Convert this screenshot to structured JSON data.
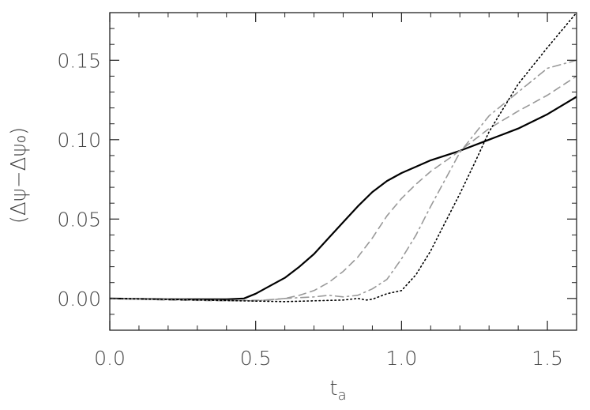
{
  "chart_data": {
    "type": "line",
    "title": "",
    "xlabel_main": "t",
    "xlabel_sub": "a",
    "ylabel": "(Δψ−Δψ₀)",
    "xlim": [
      0.0,
      1.6
    ],
    "ylim": [
      -0.02,
      0.18
    ],
    "x_ticks": [
      0.0,
      0.5,
      1.0,
      1.5
    ],
    "x_tick_labels": [
      "0.0",
      "0.5",
      "1.0",
      "1.5"
    ],
    "y_ticks": [
      0.0,
      0.05,
      0.1,
      0.15
    ],
    "y_tick_labels": [
      "0.00",
      "0.05",
      "0.10",
      "0.15"
    ],
    "grid": false,
    "legend": "none",
    "series": [
      {
        "style": "solid",
        "color": "#000000",
        "x": [
          0.0,
          0.2,
          0.4,
          0.46,
          0.5,
          0.55,
          0.6,
          0.65,
          0.7,
          0.75,
          0.8,
          0.85,
          0.9,
          0.95,
          1.0,
          1.05,
          1.1,
          1.2,
          1.3,
          1.4,
          1.5,
          1.6
        ],
        "y": [
          0.0,
          -0.0005,
          -0.0005,
          0.0,
          0.003,
          0.008,
          0.013,
          0.02,
          0.028,
          0.038,
          0.048,
          0.058,
          0.067,
          0.074,
          0.079,
          0.083,
          0.087,
          0.093,
          0.1,
          0.107,
          0.116,
          0.127
        ]
      },
      {
        "style": "dashed",
        "color": "#999999",
        "x": [
          0.0,
          0.2,
          0.4,
          0.55,
          0.6,
          0.65,
          0.7,
          0.75,
          0.8,
          0.85,
          0.9,
          0.95,
          1.0,
          1.05,
          1.1,
          1.2,
          1.3,
          1.4,
          1.5,
          1.6
        ],
        "y": [
          0.0,
          -0.001,
          -0.0015,
          -0.001,
          0.0,
          0.002,
          0.005,
          0.01,
          0.017,
          0.026,
          0.038,
          0.052,
          0.063,
          0.072,
          0.08,
          0.093,
          0.107,
          0.118,
          0.128,
          0.14
        ]
      },
      {
        "style": "dashdot",
        "color": "#999999",
        "x": [
          0.0,
          0.3,
          0.5,
          0.6,
          0.7,
          0.75,
          0.8,
          0.85,
          0.9,
          0.95,
          1.0,
          1.05,
          1.1,
          1.15,
          1.2,
          1.3,
          1.4,
          1.5,
          1.6
        ],
        "y": [
          0.0,
          -0.001,
          -0.0015,
          0.0,
          0.001,
          0.002,
          0.001,
          0.002,
          0.006,
          0.012,
          0.025,
          0.04,
          0.058,
          0.075,
          0.092,
          0.115,
          0.13,
          0.145,
          0.15
        ]
      },
      {
        "style": "dotted",
        "color": "#000000",
        "x": [
          0.0,
          0.3,
          0.6,
          0.8,
          0.85,
          0.88,
          0.9,
          0.95,
          1.0,
          1.05,
          1.1,
          1.15,
          1.2,
          1.25,
          1.3,
          1.4,
          1.5,
          1.6
        ],
        "y": [
          0.0,
          -0.001,
          -0.002,
          -0.001,
          0.0,
          -0.001,
          -0.0005,
          0.003,
          0.005,
          0.015,
          0.03,
          0.048,
          0.066,
          0.085,
          0.105,
          0.135,
          0.158,
          0.18
        ]
      }
    ]
  }
}
